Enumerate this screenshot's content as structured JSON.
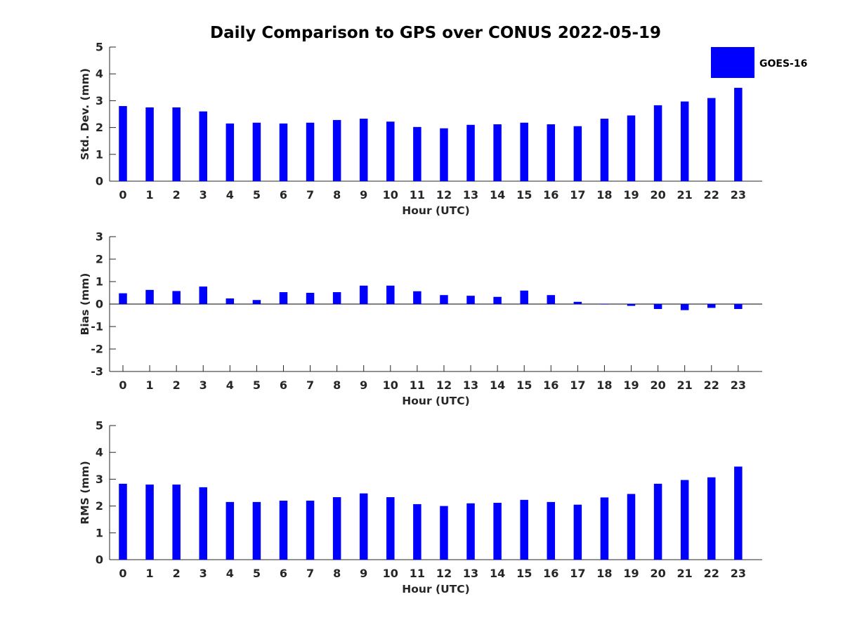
{
  "chart_data": [
    {
      "type": "bar",
      "title": "Daily Comparison to GPS over CONUS 2022-05-19",
      "xlabel": "Hour (UTC)",
      "ylabel": "Std. Dev. (mm)",
      "ylim": [
        0,
        5
      ],
      "yticks": [
        0,
        1,
        2,
        3,
        4,
        5
      ],
      "categories": [
        "0",
        "1",
        "2",
        "3",
        "4",
        "5",
        "6",
        "7",
        "8",
        "9",
        "10",
        "11",
        "12",
        "13",
        "14",
        "15",
        "16",
        "17",
        "18",
        "19",
        "20",
        "21",
        "22",
        "23"
      ],
      "series": [
        {
          "name": "GOES-16",
          "color": "#0000ff",
          "values": [
            2.8,
            2.75,
            2.75,
            2.6,
            2.15,
            2.18,
            2.15,
            2.18,
            2.28,
            2.33,
            2.22,
            2.02,
            1.97,
            2.1,
            2.12,
            2.18,
            2.12,
            2.05,
            2.33,
            2.45,
            2.83,
            2.97,
            3.1,
            3.48
          ]
        }
      ],
      "legend": {
        "position": "top-right",
        "entries": [
          "GOES-16"
        ]
      }
    },
    {
      "type": "bar",
      "xlabel": "Hour (UTC)",
      "ylabel": "Bias (mm)",
      "ylim": [
        -3,
        3
      ],
      "yticks": [
        -3,
        -2,
        -1,
        0,
        1,
        2,
        3
      ],
      "zero_line": true,
      "categories": [
        "0",
        "1",
        "2",
        "3",
        "4",
        "5",
        "6",
        "7",
        "8",
        "9",
        "10",
        "11",
        "12",
        "13",
        "14",
        "15",
        "16",
        "17",
        "18",
        "19",
        "20",
        "21",
        "22",
        "23"
      ],
      "series": [
        {
          "name": "GOES-16",
          "color": "#0000ff",
          "values": [
            0.48,
            0.63,
            0.58,
            0.78,
            0.25,
            0.18,
            0.53,
            0.5,
            0.53,
            0.82,
            0.82,
            0.57,
            0.4,
            0.37,
            0.32,
            0.6,
            0.4,
            0.1,
            -0.02,
            -0.08,
            -0.22,
            -0.27,
            -0.17,
            -0.22
          ]
        }
      ]
    },
    {
      "type": "bar",
      "xlabel": "Hour (UTC)",
      "ylabel": "RMS (mm)",
      "ylim": [
        0,
        5
      ],
      "yticks": [
        0,
        1,
        2,
        3,
        4,
        5
      ],
      "categories": [
        "0",
        "1",
        "2",
        "3",
        "4",
        "5",
        "6",
        "7",
        "8",
        "9",
        "10",
        "11",
        "12",
        "13",
        "14",
        "15",
        "16",
        "17",
        "18",
        "19",
        "20",
        "21",
        "22",
        "23"
      ],
      "series": [
        {
          "name": "GOES-16",
          "color": "#0000ff",
          "values": [
            2.83,
            2.8,
            2.8,
            2.7,
            2.15,
            2.15,
            2.2,
            2.2,
            2.33,
            2.47,
            2.33,
            2.07,
            2.0,
            2.1,
            2.12,
            2.23,
            2.15,
            2.05,
            2.32,
            2.45,
            2.83,
            2.97,
            3.07,
            3.47
          ]
        }
      ]
    }
  ]
}
